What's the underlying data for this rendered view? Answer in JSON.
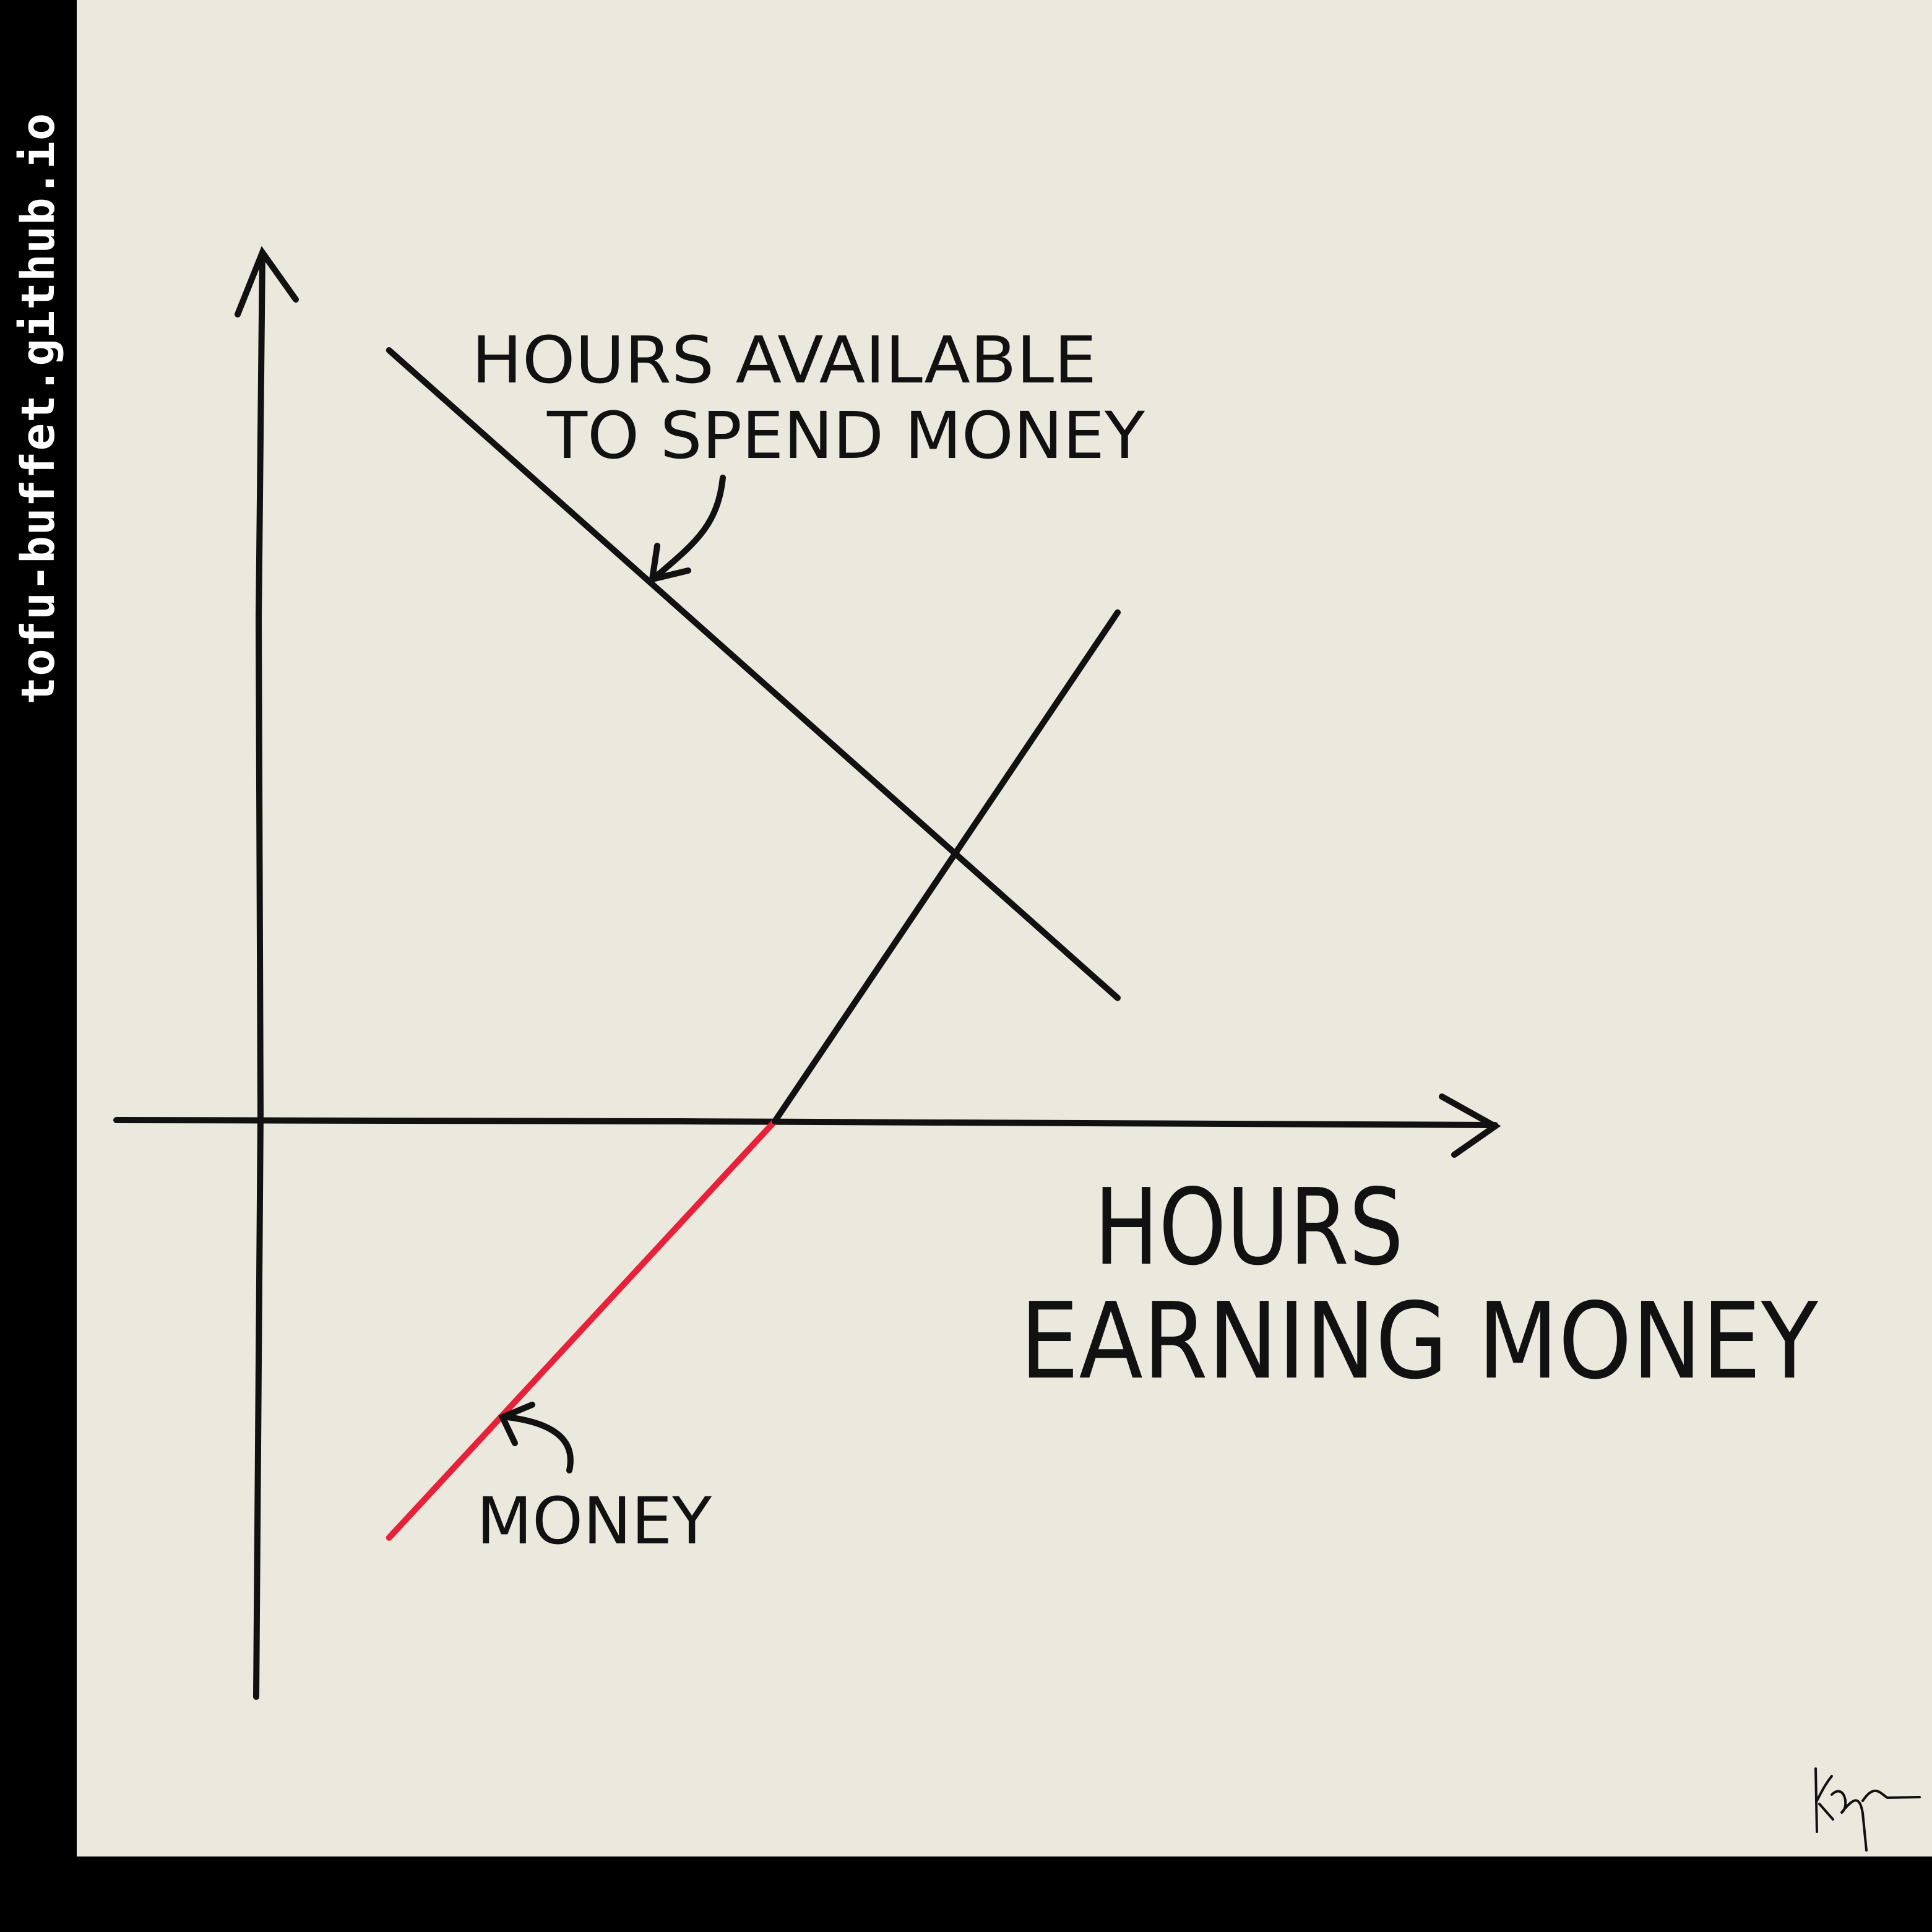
{
  "watermark": "tofu-buffet.github.io",
  "colors": {
    "background": "#ebe8de",
    "frame": "#000000",
    "ink": "#111111",
    "highlight": "#e8213a"
  },
  "chart_data": {
    "type": "line",
    "title": "",
    "xlabel": "HOURS EARNING MONEY",
    "ylabel": "",
    "series": [
      {
        "name": "HOURS available TO SPEND money",
        "x": [
          0.15,
          1.0
        ],
        "y": [
          1.0,
          0.16
        ],
        "color": "#111111"
      },
      {
        "name": "money",
        "x": [
          0.15,
          0.6,
          1.0
        ],
        "y": [
          -0.54,
          0.0,
          0.66
        ],
        "negative_color": "#e8213a",
        "color": "#111111"
      }
    ],
    "annotations": [
      {
        "text_lines": [
          "HOURS available",
          "TO SPEND money"
        ],
        "target_series": 0
      },
      {
        "text_lines": [
          "money"
        ],
        "target_series": 1
      }
    ]
  },
  "signature": "K"
}
